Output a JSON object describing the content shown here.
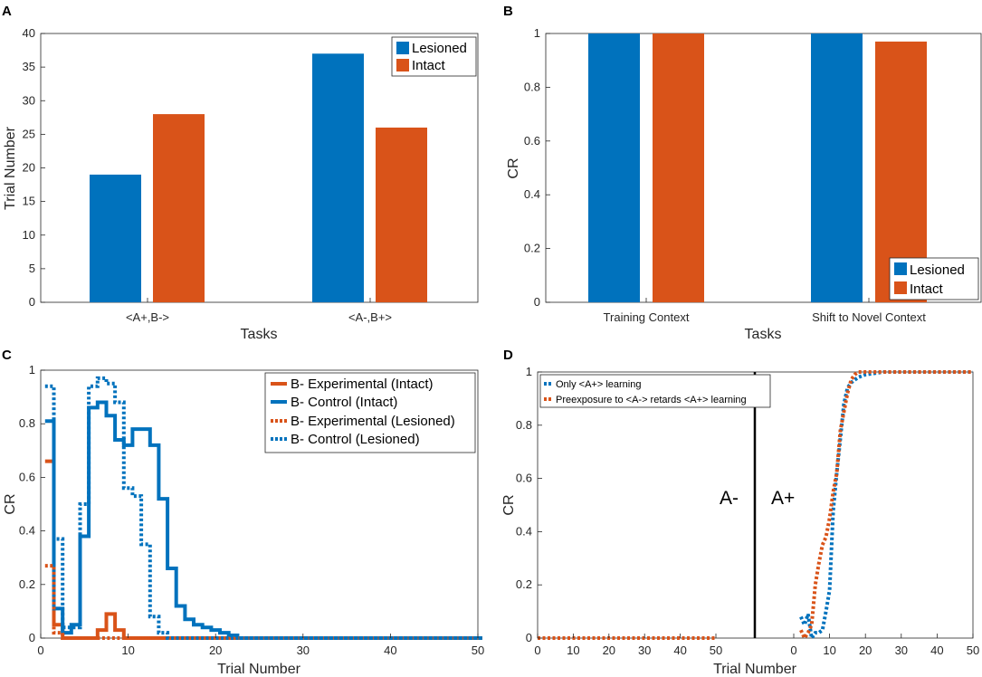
{
  "colors": {
    "blue": "#0072BD",
    "orange": "#D95319",
    "axis": "#262626",
    "black": "#000000"
  },
  "chart_data": [
    {
      "panel": "A",
      "type": "bar",
      "categories": [
        "<A+,B->",
        "<A-,B+>"
      ],
      "series": [
        {
          "name": "Lesioned",
          "values": [
            19,
            37
          ]
        },
        {
          "name": "Intact",
          "values": [
            28,
            26
          ]
        }
      ],
      "xlabel": "Tasks",
      "ylabel": "Trial Number",
      "ylim": [
        0,
        40
      ],
      "yticks": [
        0,
        5,
        10,
        15,
        20,
        25,
        30,
        35,
        40
      ],
      "yticklabels": [
        "0",
        "5",
        "10",
        "15",
        "20",
        "25",
        "30",
        "35",
        "40"
      ],
      "legend_position": "top-right"
    },
    {
      "panel": "B",
      "type": "bar",
      "categories": [
        "Training Context",
        "Shift to Novel Context"
      ],
      "series": [
        {
          "name": "Lesioned",
          "values": [
            1.0,
            1.0
          ]
        },
        {
          "name": "Intact",
          "values": [
            1.0,
            0.97
          ]
        }
      ],
      "xlabel": "Tasks",
      "ylabel": "CR",
      "ylim": [
        0,
        1
      ],
      "yticks": [
        0,
        0.2,
        0.4,
        0.6,
        0.8,
        1
      ],
      "yticklabels": [
        "0",
        "0.2",
        "0.4",
        "0.6",
        "0.8",
        "1"
      ],
      "legend_position": "bottom-right"
    },
    {
      "panel": "C",
      "type": "line",
      "xlabel": "Trial Number",
      "ylabel": "CR",
      "xlim": [
        0,
        50
      ],
      "ylim": [
        0,
        1
      ],
      "xticks": [
        0,
        10,
        20,
        30,
        40,
        50
      ],
      "xticklabels": [
        "0",
        "10",
        "20",
        "30",
        "40",
        "50"
      ],
      "yticks": [
        0,
        0.2,
        0.4,
        0.6,
        0.8,
        1
      ],
      "yticklabels": [
        "0",
        "0.2",
        "0.4",
        "0.6",
        "0.8",
        "1"
      ],
      "legend_position": "top-right",
      "series": [
        {
          "name": "B- Experimental (Intact)",
          "style": "solid",
          "color": "orange",
          "x": [
            1,
            2,
            3,
            4,
            5,
            6,
            7,
            8,
            9,
            10,
            11,
            12,
            13,
            14,
            15,
            16,
            17,
            18,
            19,
            20,
            21,
            22,
            23,
            24,
            25,
            26,
            27,
            28,
            29,
            30,
            31,
            32,
            33,
            34,
            35,
            36,
            37,
            38,
            39,
            40,
            41,
            42,
            43,
            44,
            45,
            46,
            47,
            48,
            49,
            50
          ],
          "y": [
            0.66,
            0.05,
            0.0,
            0.0,
            0.0,
            0.0,
            0.03,
            0.09,
            0.03,
            0.0,
            0.0,
            0.0,
            0.0,
            0.0,
            0.0,
            0.0,
            0.0,
            0.0,
            0.0,
            0.0,
            0.0,
            0.0,
            0.0,
            0.0,
            0.0,
            0.0,
            0.0,
            0.0,
            0.0,
            0.0,
            0.0,
            0.0,
            0.0,
            0.0,
            0.0,
            0.0,
            0.0,
            0.0,
            0.0,
            0.0,
            0.0,
            0.0,
            0.0,
            0.0,
            0.0,
            0.0,
            0.0,
            0.0,
            0.0,
            0.0
          ]
        },
        {
          "name": "B- Control (Intact)",
          "style": "solid",
          "color": "blue",
          "x": [
            1,
            2,
            3,
            4,
            5,
            6,
            7,
            8,
            9,
            10,
            11,
            12,
            13,
            14,
            15,
            16,
            17,
            18,
            19,
            20,
            21,
            22,
            23,
            24,
            25,
            26,
            27,
            28,
            29,
            30,
            31,
            32,
            33,
            34,
            35,
            36,
            37,
            38,
            39,
            40,
            41,
            42,
            43,
            44,
            45,
            46,
            47,
            48,
            49,
            50
          ],
          "y": [
            0.81,
            0.11,
            0.02,
            0.05,
            0.38,
            0.86,
            0.88,
            0.83,
            0.74,
            0.72,
            0.78,
            0.78,
            0.72,
            0.52,
            0.26,
            0.12,
            0.07,
            0.05,
            0.04,
            0.03,
            0.02,
            0.01,
            0.0,
            0.0,
            0.0,
            0.0,
            0.0,
            0.0,
            0.0,
            0.0,
            0.0,
            0.0,
            0.0,
            0.0,
            0.0,
            0.0,
            0.0,
            0.0,
            0.0,
            0.0,
            0.0,
            0.0,
            0.0,
            0.0,
            0.0,
            0.0,
            0.0,
            0.0,
            0.0,
            0.0
          ]
        },
        {
          "name": "B- Experimental (Lesioned)",
          "style": "dotted",
          "color": "orange",
          "x": [
            1,
            2,
            3,
            4,
            5,
            6,
            7,
            8,
            9,
            10,
            11,
            12,
            13,
            14,
            15,
            16,
            17,
            18,
            19,
            20,
            21,
            22,
            23,
            24,
            25,
            26,
            27,
            28,
            29,
            30,
            31,
            32,
            33,
            34,
            35,
            36,
            37,
            38,
            39,
            40,
            41,
            42,
            43,
            44,
            45,
            46,
            47,
            48,
            49,
            50
          ],
          "y": [
            0.27,
            0.02,
            0.0,
            0.0,
            0.0,
            0.0,
            0.0,
            0.0,
            0.0,
            0.0,
            0.0,
            0.0,
            0.0,
            0.0,
            0.0,
            0.0,
            0.0,
            0.0,
            0.0,
            0.0,
            0.0,
            0.0,
            0.0,
            0.0,
            0.0,
            0.0,
            0.0,
            0.0,
            0.0,
            0.0,
            0.0,
            0.0,
            0.0,
            0.0,
            0.0,
            0.0,
            0.0,
            0.0,
            0.0,
            0.0,
            0.0,
            0.0,
            0.0,
            0.0,
            0.0,
            0.0,
            0.0,
            0.0,
            0.0,
            0.0
          ]
        },
        {
          "name": "B- Control (Lesioned)",
          "style": "dotted",
          "color": "blue",
          "x": [
            1,
            2,
            3,
            4,
            5,
            6,
            7,
            8,
            9,
            10,
            11,
            12,
            13,
            14,
            15,
            16,
            17,
            18,
            19,
            20,
            21,
            22,
            23,
            24,
            25,
            26,
            27,
            28,
            29,
            30,
            31,
            32,
            33,
            34,
            35,
            36,
            37,
            38,
            39,
            40,
            41,
            42,
            43,
            44,
            45,
            46,
            47,
            48,
            49,
            50
          ],
          "y": [
            0.94,
            0.37,
            0.04,
            0.04,
            0.5,
            0.94,
            0.97,
            0.95,
            0.88,
            0.56,
            0.53,
            0.35,
            0.08,
            0.02,
            0.0,
            0.0,
            0.0,
            0.0,
            0.0,
            0.0,
            0.0,
            0.0,
            0.0,
            0.0,
            0.0,
            0.0,
            0.0,
            0.0,
            0.0,
            0.0,
            0.0,
            0.0,
            0.0,
            0.0,
            0.0,
            0.0,
            0.0,
            0.0,
            0.0,
            0.0,
            0.0,
            0.0,
            0.0,
            0.0,
            0.0,
            0.0,
            0.0,
            0.0,
            0.0,
            0.0
          ]
        }
      ]
    },
    {
      "panel": "D",
      "type": "line",
      "xlabel": "Trial Number",
      "ylabel": "CR",
      "xlim_pre": [
        0,
        50
      ],
      "xlim_post": [
        0,
        50
      ],
      "ylim": [
        0,
        1
      ],
      "xticks_pre": [
        0,
        10,
        20,
        30,
        40,
        50
      ],
      "xticks_post": [
        0,
        10,
        20,
        30,
        40,
        50
      ],
      "xticklabels_pre": [
        "0",
        "10",
        "20",
        "30",
        "40",
        "50"
      ],
      "xticklabels_post": [
        "0",
        "10",
        "20",
        "30",
        "40",
        "50"
      ],
      "yticks": [
        0,
        0.2,
        0.4,
        0.6,
        0.8,
        1
      ],
      "yticklabels": [
        "0",
        "0.2",
        "0.4",
        "0.6",
        "0.8",
        "1"
      ],
      "legend_position": "top-left",
      "annotations": [
        "A-",
        "A+"
      ],
      "pre_phase": {
        "series": "Preexposure to <A-> retards <A+> learning",
        "x": [
          0,
          50
        ],
        "y": [
          0,
          0
        ]
      },
      "series": [
        {
          "name": "Only <A+> learning",
          "style": "dotted",
          "color": "blue",
          "x": [
            2,
            3,
            4,
            5,
            6,
            7,
            8,
            9,
            10,
            11,
            12,
            13,
            14,
            15,
            16,
            17,
            18,
            20,
            25,
            30,
            40,
            50
          ],
          "y": [
            0.08,
            0.05,
            0.09,
            0.0,
            0.02,
            0.02,
            0.03,
            0.1,
            0.18,
            0.48,
            0.62,
            0.75,
            0.88,
            0.94,
            0.96,
            0.97,
            0.98,
            0.99,
            1.0,
            1.0,
            1.0,
            1.0
          ]
        },
        {
          "name": "Preexposure to <A-> retards <A+> learning",
          "style": "dotted",
          "color": "orange",
          "x": [
            2,
            3,
            4,
            5,
            6,
            7,
            8,
            9,
            10,
            11,
            12,
            13,
            14,
            15,
            16,
            17,
            18,
            20,
            25,
            30,
            40,
            50
          ],
          "y": [
            0.03,
            0.0,
            0.02,
            0.05,
            0.2,
            0.28,
            0.35,
            0.38,
            0.45,
            0.55,
            0.62,
            0.78,
            0.85,
            0.92,
            0.97,
            0.99,
            1.0,
            1.0,
            1.0,
            1.0,
            1.0,
            1.0
          ]
        }
      ]
    }
  ]
}
